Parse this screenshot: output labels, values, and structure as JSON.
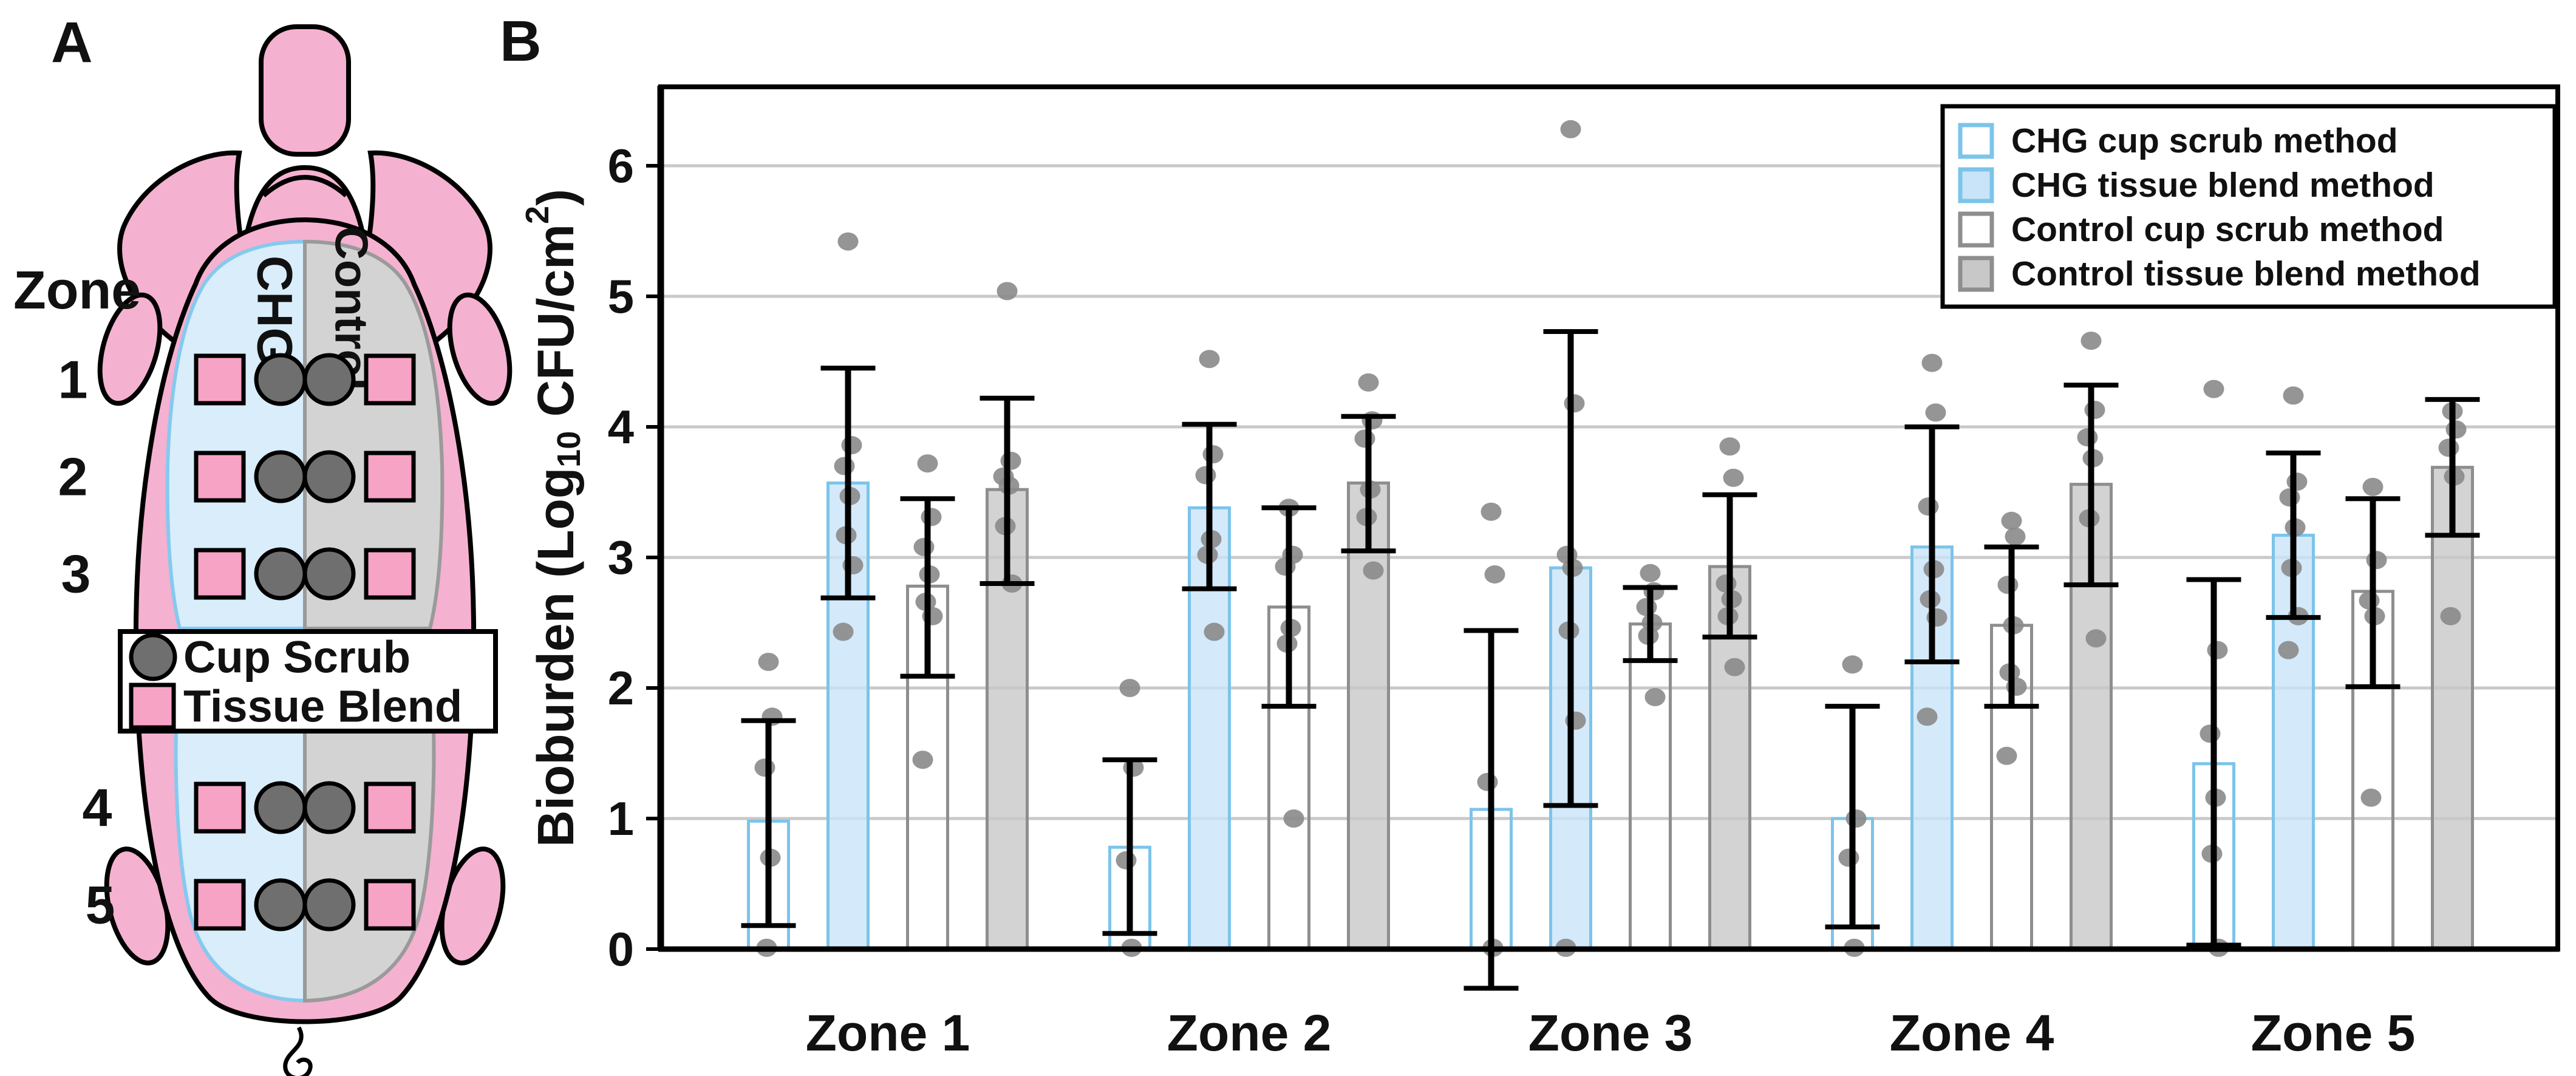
{
  "panelA": {
    "label": "A",
    "zone_header": "Zone",
    "zones": [
      "1",
      "2",
      "3",
      "4",
      "5"
    ],
    "left_label": "CHG",
    "right_label": "Control",
    "legend": [
      {
        "shape": "circle",
        "label": "Cup Scrub"
      },
      {
        "shape": "square",
        "label": "Tissue Blend"
      }
    ],
    "colors": {
      "body": "#F5B1D0",
      "patch": "#F7A3C6",
      "marker": "#6F6F6F",
      "chg_region": "#D9EDFA",
      "chg_border": "#85C9EF",
      "control_region": "#D3D3D3",
      "control_border": "#9A9A9A"
    }
  },
  "panelB": {
    "label": "B",
    "colors": {
      "grid": "#C9C9C9",
      "dot": "#8A8A8A",
      "frame": "#000000",
      "chg_stroke": "#7CC4EA",
      "chg_fill": "#C9E4F8",
      "control_stroke": "#8E8E8E",
      "control_fill": "#C8C8C8"
    }
  },
  "chart_data": {
    "type": "bar",
    "title": "",
    "xlabel": "",
    "ylabel": "Bioburden (Log10 CFU/cm2)",
    "ylabel_parts": {
      "pre": "Bioburden (Log",
      "sub": "10",
      "mid": " CFU/cm",
      "sup": "2",
      "post": ")"
    },
    "categories": [
      "Zone 1",
      "Zone 2",
      "Zone 3",
      "Zone 4",
      "Zone 5"
    ],
    "ylim": [
      0,
      6.6
    ],
    "yticks": [
      0,
      1,
      2,
      3,
      4,
      5,
      6
    ],
    "grid": "horizontal",
    "legend_position": "top-right",
    "series": [
      {
        "name": "CHG cup scrub method",
        "swatch": "chg-outline",
        "values": [
          0.98,
          0.78,
          1.07,
          1.0,
          1.42
        ],
        "err_low": [
          0.18,
          0.12,
          -0.3,
          0.17,
          0.03
        ],
        "err_high": [
          1.75,
          1.45,
          2.44,
          1.86,
          2.83
        ],
        "points": [
          [
            2.2,
            1.78,
            1.39,
            0.7,
            0.01
          ],
          [
            2.0,
            1.39,
            0.68,
            0.01
          ],
          [
            3.35,
            2.87,
            1.28,
            0.01
          ],
          [
            2.18,
            1.0,
            0.7,
            0.01
          ],
          [
            4.29,
            2.29,
            1.65,
            1.16,
            0.73,
            0.01
          ]
        ]
      },
      {
        "name": "CHG tissue blend method",
        "swatch": "chg-fill",
        "values": [
          3.57,
          3.38,
          2.92,
          3.08,
          3.17
        ],
        "err_low": [
          2.69,
          2.76,
          1.1,
          2.2,
          2.54
        ],
        "err_high": [
          4.45,
          4.02,
          4.73,
          4.0,
          3.8
        ],
        "points": [
          [
            5.42,
            3.86,
            3.7,
            3.47,
            3.17,
            2.94,
            2.43
          ],
          [
            4.52,
            3.79,
            3.63,
            3.14,
            3.02,
            2.43
          ],
          [
            6.28,
            4.18,
            3.02,
            2.92,
            2.44,
            1.75,
            0.01
          ],
          [
            4.49,
            4.11,
            3.39,
            2.91,
            2.68,
            2.54,
            1.78
          ],
          [
            4.24,
            3.58,
            3.46,
            3.23,
            2.92,
            2.55,
            2.29
          ]
        ]
      },
      {
        "name": "Control cup scrub method",
        "swatch": "control-outline",
        "values": [
          2.78,
          2.62,
          2.49,
          2.48,
          2.74
        ],
        "err_low": [
          2.09,
          1.86,
          2.21,
          1.86,
          2.01
        ],
        "err_high": [
          3.45,
          3.38,
          2.77,
          3.08,
          3.45
        ],
        "points": [
          [
            3.72,
            3.31,
            3.08,
            2.87,
            2.66,
            2.55,
            1.45
          ],
          [
            3.38,
            3.02,
            2.93,
            2.46,
            2.34,
            1.0
          ],
          [
            2.88,
            2.74,
            2.62,
            2.5,
            2.4,
            1.93
          ],
          [
            3.28,
            3.16,
            2.79,
            2.48,
            2.12,
            2.01,
            1.48
          ],
          [
            3.54,
            2.98,
            2.67,
            2.55,
            1.16
          ]
        ]
      },
      {
        "name": "Control tissue blend method",
        "swatch": "control-fill",
        "values": [
          3.52,
          3.57,
          2.93,
          3.56,
          3.69
        ],
        "err_low": [
          2.8,
          3.05,
          2.39,
          2.79,
          3.17
        ],
        "err_high": [
          4.22,
          4.08,
          3.48,
          4.32,
          4.21
        ],
        "points": [
          [
            5.04,
            3.74,
            3.62,
            3.55,
            3.24,
            2.8
          ],
          [
            4.34,
            4.05,
            3.91,
            3.52,
            3.31,
            2.9
          ],
          [
            3.85,
            3.61,
            2.8,
            2.68,
            2.55,
            2.16
          ],
          [
            4.66,
            4.13,
            3.92,
            3.76,
            3.3,
            2.38
          ],
          [
            4.12,
            3.98,
            3.84,
            3.62,
            2.55
          ]
        ]
      }
    ]
  }
}
